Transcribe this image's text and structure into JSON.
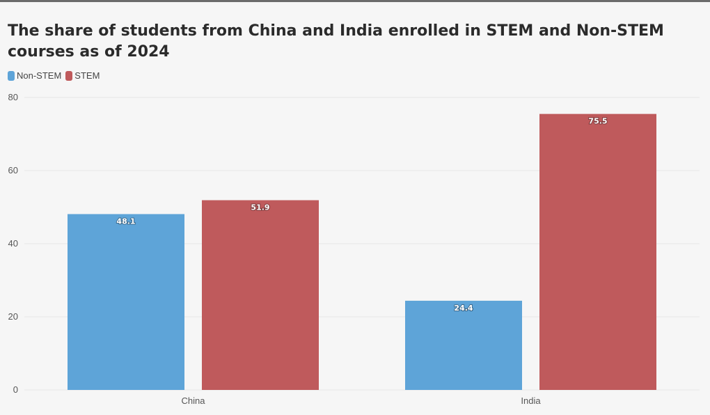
{
  "chart_data": {
    "type": "bar",
    "title": "The share of students from China and India enrolled in STEM and Non-STEM courses as of 2024",
    "categories": [
      "China",
      "India"
    ],
    "series": [
      {
        "name": "Non-STEM",
        "color": "#5ea4d8",
        "values": [
          48.1,
          24.4
        ]
      },
      {
        "name": "STEM",
        "color": "#bf5a5c",
        "values": [
          51.9,
          75.5
        ]
      }
    ],
    "yticks": [
      0,
      20,
      40,
      60,
      80
    ],
    "ylim": [
      0,
      80
    ],
    "grid": true,
    "legend_position": "top-left"
  }
}
